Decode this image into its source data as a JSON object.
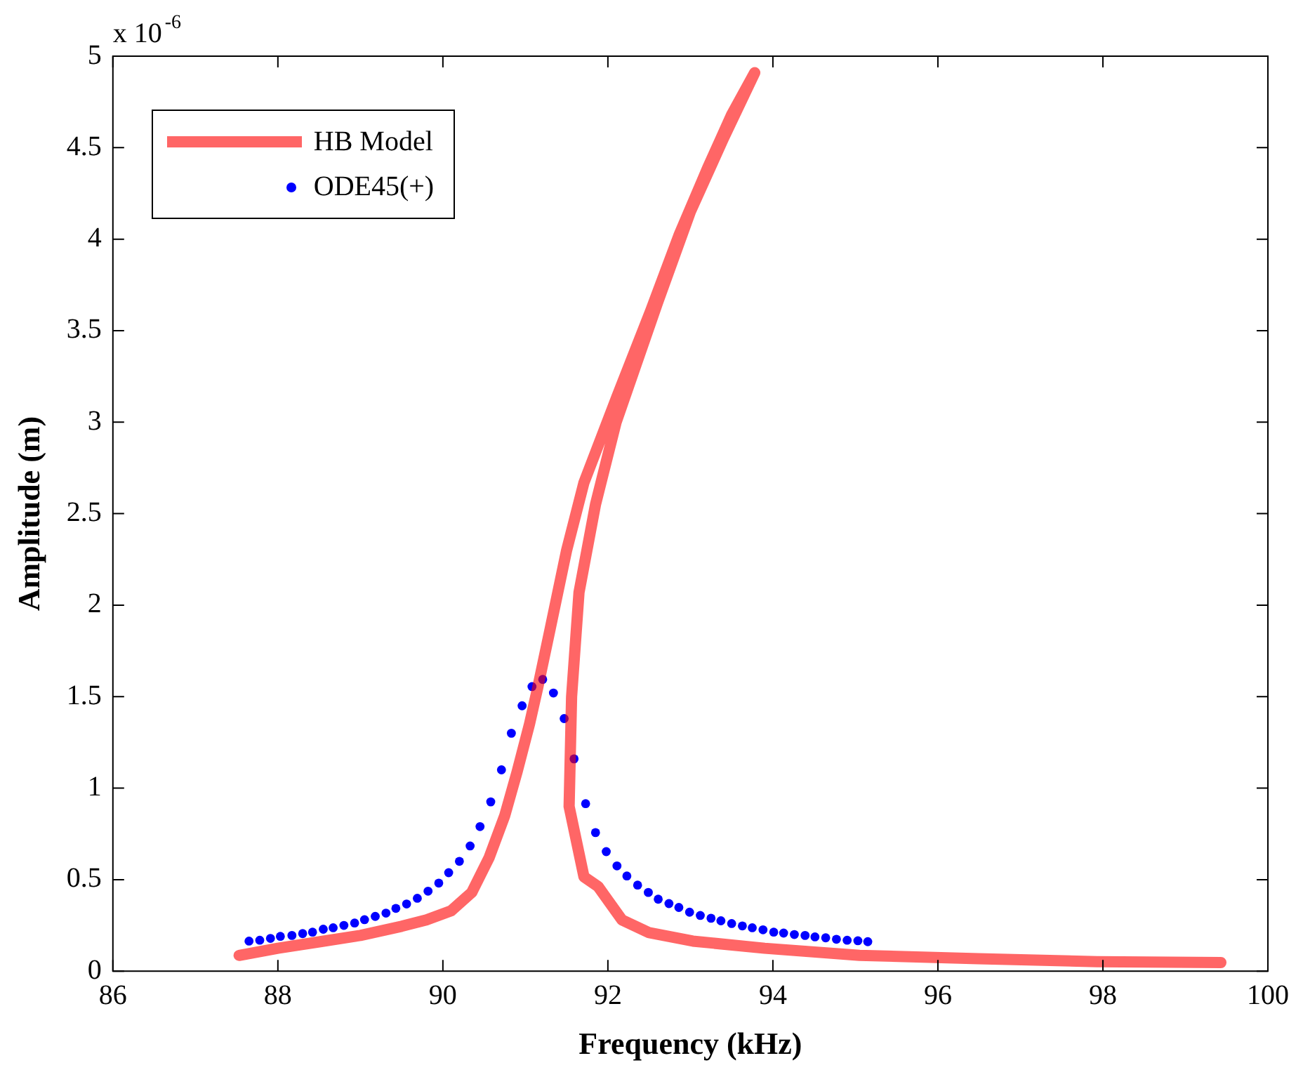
{
  "chart_data": {
    "type": "scatter",
    "xlabel": "Frequency (kHz)",
    "ylabel": "Amplitude (m)",
    "annotations": [
      "x 10$^{-6}$"
    ],
    "xlim": [
      86,
      100
    ],
    "xticks": [
      86,
      88,
      90,
      92,
      94,
      96,
      98,
      100
    ],
    "ylim": [
      0,
      5
    ],
    "yticks": [
      0,
      0.5,
      1,
      1.5,
      2,
      2.5,
      3,
      3.5,
      4,
      4.5,
      5
    ],
    "grid": false,
    "legend": "top left",
    "series": [
      {
        "name": "HB Model",
        "type": "line",
        "marker": "none",
        "color": "#ff0000",
        "x": [
          87.53,
          88.0,
          88.5,
          89.0,
          89.5,
          89.8,
          90.1,
          90.35,
          90.56,
          90.75,
          90.9,
          91.05,
          91.15,
          91.3,
          91.5,
          91.71,
          92.11,
          92.52,
          92.86,
          93.21,
          93.5,
          93.78,
          93.4,
          93.0,
          92.6,
          92.1,
          91.85,
          91.65,
          91.56,
          91.53,
          91.71,
          91.88,
          92.17,
          92.5,
          93.03,
          93.9,
          95.05,
          96.49,
          97.93,
          99.43
        ],
        "values": [
          0.086,
          0.125,
          0.16,
          0.195,
          0.245,
          0.28,
          0.33,
          0.43,
          0.62,
          0.85,
          1.09,
          1.35,
          1.55,
          1.87,
          2.3,
          2.67,
          3.14,
          3.61,
          4.02,
          4.39,
          4.68,
          4.91,
          4.55,
          4.15,
          3.65,
          3.0,
          2.55,
          2.07,
          1.5,
          0.9,
          0.515,
          0.463,
          0.28,
          0.21,
          0.164,
          0.125,
          0.086,
          0.068,
          0.052,
          0.047
        ]
      },
      {
        "name": "ODE45(+)",
        "type": "scatter",
        "marker": "circle",
        "color": "#0000ff",
        "x": [
          87.65,
          87.78,
          87.91,
          88.03,
          88.17,
          88.3,
          88.42,
          88.55,
          88.67,
          88.8,
          88.93,
          89.05,
          89.18,
          89.31,
          89.43,
          89.56,
          89.69,
          89.82,
          89.95,
          90.07,
          90.2,
          90.33,
          90.45,
          90.58,
          90.71,
          90.83,
          90.96,
          91.08,
          91.21,
          91.34,
          91.47,
          91.59,
          91.73,
          91.85,
          91.98,
          92.11,
          92.23,
          92.36,
          92.49,
          92.61,
          92.74,
          92.86,
          92.99,
          93.12,
          93.25,
          93.37,
          93.5,
          93.63,
          93.75,
          93.88,
          94.01,
          94.13,
          94.26,
          94.39,
          94.51,
          94.64,
          94.77,
          94.9,
          95.03,
          95.15
        ],
        "values": [
          0.164,
          0.169,
          0.179,
          0.19,
          0.195,
          0.205,
          0.213,
          0.229,
          0.237,
          0.25,
          0.263,
          0.281,
          0.299,
          0.317,
          0.343,
          0.367,
          0.398,
          0.437,
          0.481,
          0.538,
          0.6,
          0.684,
          0.79,
          0.925,
          1.1,
          1.3,
          1.45,
          1.555,
          1.594,
          1.52,
          1.38,
          1.16,
          0.915,
          0.757,
          0.653,
          0.575,
          0.52,
          0.47,
          0.43,
          0.393,
          0.369,
          0.348,
          0.322,
          0.304,
          0.289,
          0.275,
          0.26,
          0.247,
          0.237,
          0.226,
          0.213,
          0.208,
          0.2,
          0.195,
          0.187,
          0.182,
          0.174,
          0.169,
          0.166,
          0.161
        ]
      }
    ]
  }
}
